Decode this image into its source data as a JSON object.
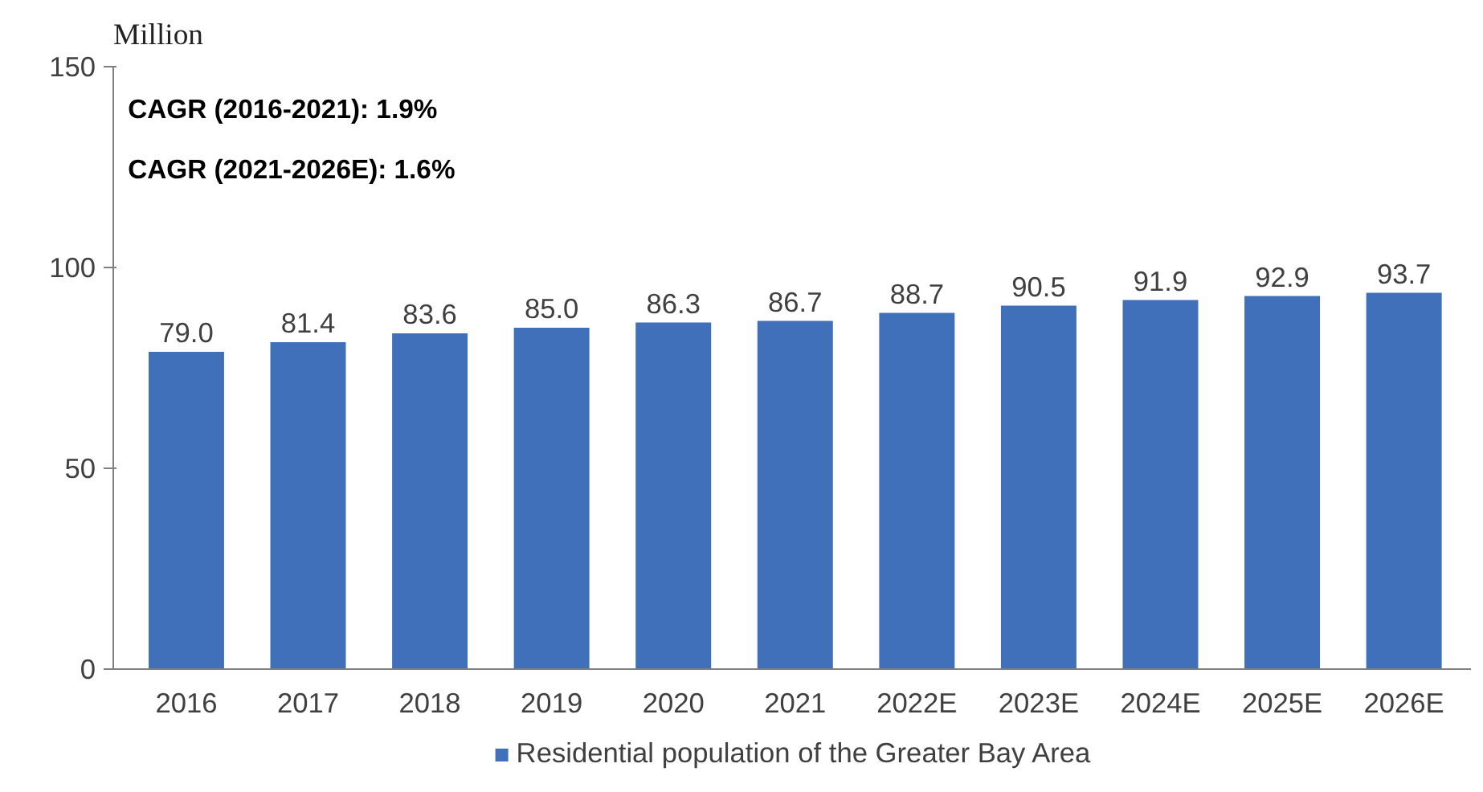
{
  "chart_data": {
    "type": "bar",
    "ylabel": "Million",
    "categories": [
      "2016",
      "2017",
      "2018",
      "2019",
      "2020",
      "2021",
      "2022E",
      "2023E",
      "2024E",
      "2025E",
      "2026E"
    ],
    "series": [
      {
        "name": "Residential population of the Greater Bay Area",
        "color": "#3f70b9",
        "values": [
          79.0,
          81.4,
          83.6,
          85.0,
          86.3,
          86.7,
          88.7,
          90.5,
          91.9,
          92.9,
          93.7
        ],
        "value_labels": [
          "79.0",
          "81.4",
          "83.6",
          "85.0",
          "86.3",
          "86.7",
          "88.7",
          "90.5",
          "91.9",
          "92.9",
          "93.7"
        ]
      }
    ],
    "ylim": [
      0,
      150
    ],
    "yticks": [
      0,
      50,
      100,
      150
    ],
    "grid": false,
    "legend": "bottom",
    "annotations": [
      "CAGR  (2016-2021): 1.9%",
      "CAGR  (2021-2026E): 1.6%"
    ]
  }
}
